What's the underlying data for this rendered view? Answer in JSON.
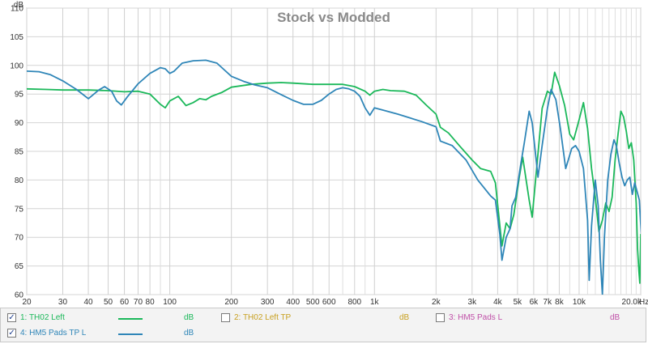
{
  "chart_data": {
    "type": "line",
    "title": "Stock vs Modded",
    "y_unit_label": "dB",
    "x_unit_label": "Hz",
    "x_scale": "log",
    "xlim": [
      20,
      20000
    ],
    "ylim": [
      60,
      110
    ],
    "grid": true,
    "x_ticks": [
      {
        "v": 20,
        "label": "20"
      },
      {
        "v": 30,
        "label": "30"
      },
      {
        "v": 40,
        "label": "40"
      },
      {
        "v": 50,
        "label": "50"
      },
      {
        "v": 60,
        "label": "60"
      },
      {
        "v": 70,
        "label": "70"
      },
      {
        "v": 80,
        "label": "80"
      },
      {
        "v": 100,
        "label": "100"
      },
      {
        "v": 200,
        "label": "200"
      },
      {
        "v": 300,
        "label": "300"
      },
      {
        "v": 400,
        "label": "400"
      },
      {
        "v": 500,
        "label": "500"
      },
      {
        "v": 600,
        "label": "600"
      },
      {
        "v": 800,
        "label": "800"
      },
      {
        "v": 1000,
        "label": "1k"
      },
      {
        "v": 2000,
        "label": "2k"
      },
      {
        "v": 3000,
        "label": "3k"
      },
      {
        "v": 4000,
        "label": "4k"
      },
      {
        "v": 5000,
        "label": "5k"
      },
      {
        "v": 6000,
        "label": "6k"
      },
      {
        "v": 7000,
        "label": "7k"
      },
      {
        "v": 8000,
        "label": "8k"
      },
      {
        "v": 10000,
        "label": "10k"
      },
      {
        "v": 20000,
        "label": "20.0k"
      }
    ],
    "x_minor_gridlines": [
      90,
      700,
      900,
      9000,
      11000,
      12000,
      13000,
      14000,
      15000,
      16000,
      17000,
      18000,
      19000
    ],
    "y_ticks": [
      60,
      65,
      70,
      75,
      80,
      85,
      90,
      95,
      100,
      105,
      110
    ],
    "series": [
      {
        "name": "1: TH02 Left",
        "color": "#1bb85a",
        "points": [
          [
            20,
            95.9
          ],
          [
            25,
            95.8
          ],
          [
            30,
            95.7
          ],
          [
            40,
            95.7
          ],
          [
            50,
            95.6
          ],
          [
            60,
            95.4
          ],
          [
            70,
            95.5
          ],
          [
            80,
            95.0
          ],
          [
            90,
            93.2
          ],
          [
            95,
            92.6
          ],
          [
            100,
            93.8
          ],
          [
            110,
            94.6
          ],
          [
            120,
            93.0
          ],
          [
            130,
            93.5
          ],
          [
            140,
            94.2
          ],
          [
            150,
            94.0
          ],
          [
            160,
            94.6
          ],
          [
            180,
            95.3
          ],
          [
            200,
            96.2
          ],
          [
            250,
            96.7
          ],
          [
            300,
            96.9
          ],
          [
            350,
            97.0
          ],
          [
            400,
            96.9
          ],
          [
            500,
            96.7
          ],
          [
            600,
            96.7
          ],
          [
            700,
            96.7
          ],
          [
            800,
            96.3
          ],
          [
            900,
            95.5
          ],
          [
            950,
            94.8
          ],
          [
            1000,
            95.5
          ],
          [
            1100,
            95.8
          ],
          [
            1200,
            95.6
          ],
          [
            1400,
            95.5
          ],
          [
            1600,
            94.8
          ],
          [
            1800,
            93.0
          ],
          [
            2000,
            91.5
          ],
          [
            2100,
            89.2
          ],
          [
            2300,
            88.2
          ],
          [
            2600,
            86.0
          ],
          [
            3000,
            83.5
          ],
          [
            3300,
            82.0
          ],
          [
            3700,
            81.5
          ],
          [
            3900,
            79.5
          ],
          [
            4100,
            72.0
          ],
          [
            4200,
            68.5
          ],
          [
            4400,
            72.5
          ],
          [
            4600,
            71.5
          ],
          [
            4800,
            74.0
          ],
          [
            5100,
            80.5
          ],
          [
            5300,
            84.0
          ],
          [
            5700,
            76.5
          ],
          [
            5900,
            73.5
          ],
          [
            6200,
            82.0
          ],
          [
            6600,
            92.5
          ],
          [
            7000,
            95.5
          ],
          [
            7300,
            95.0
          ],
          [
            7600,
            98.8
          ],
          [
            8000,
            96.5
          ],
          [
            8500,
            93.0
          ],
          [
            9000,
            88.0
          ],
          [
            9400,
            87.0
          ],
          [
            10000,
            90.5
          ],
          [
            10500,
            93.5
          ],
          [
            11000,
            89.0
          ],
          [
            11500,
            82.0
          ],
          [
            12000,
            77.0
          ],
          [
            12500,
            71.0
          ],
          [
            13000,
            73.0
          ],
          [
            13500,
            76.0
          ],
          [
            14000,
            74.5
          ],
          [
            14500,
            77.0
          ],
          [
            15000,
            83.5
          ],
          [
            15500,
            88.0
          ],
          [
            16000,
            92.0
          ],
          [
            16500,
            91.0
          ],
          [
            17000,
            88.5
          ],
          [
            17500,
            85.5
          ],
          [
            18000,
            86.5
          ],
          [
            18500,
            83.5
          ],
          [
            19000,
            76.0
          ],
          [
            19300,
            68.0
          ],
          [
            19600,
            64.0
          ],
          [
            19800,
            62.0
          ],
          [
            20000,
            70.5
          ],
          [
            20200,
            66.0
          ],
          [
            20500,
            78.0
          ]
        ]
      },
      {
        "name": "2: TH02 Left TP",
        "color": "#c8a020",
        "points": []
      },
      {
        "name": "3: HM5 Pads L",
        "color": "#c050a8",
        "points": []
      },
      {
        "name": "4: HM5 Pads TP L",
        "color": "#2f86b8",
        "points": [
          [
            20,
            99.0
          ],
          [
            23,
            98.9
          ],
          [
            26,
            98.4
          ],
          [
            30,
            97.3
          ],
          [
            35,
            95.8
          ],
          [
            40,
            94.2
          ],
          [
            45,
            95.7
          ],
          [
            48,
            96.3
          ],
          [
            52,
            95.5
          ],
          [
            55,
            93.8
          ],
          [
            58,
            93.1
          ],
          [
            62,
            94.5
          ],
          [
            70,
            96.8
          ],
          [
            80,
            98.6
          ],
          [
            90,
            99.6
          ],
          [
            95,
            99.4
          ],
          [
            100,
            98.6
          ],
          [
            105,
            99.0
          ],
          [
            115,
            100.4
          ],
          [
            130,
            100.8
          ],
          [
            150,
            100.9
          ],
          [
            170,
            100.4
          ],
          [
            185,
            99.2
          ],
          [
            200,
            98.1
          ],
          [
            230,
            97.2
          ],
          [
            260,
            96.6
          ],
          [
            300,
            96.1
          ],
          [
            350,
            94.9
          ],
          [
            400,
            93.9
          ],
          [
            450,
            93.2
          ],
          [
            500,
            93.2
          ],
          [
            550,
            93.9
          ],
          [
            600,
            95.0
          ],
          [
            650,
            95.8
          ],
          [
            700,
            96.1
          ],
          [
            750,
            95.9
          ],
          [
            800,
            95.5
          ],
          [
            850,
            94.6
          ],
          [
            900,
            92.6
          ],
          [
            950,
            91.3
          ],
          [
            1000,
            92.6
          ],
          [
            1100,
            92.2
          ],
          [
            1300,
            91.5
          ],
          [
            1500,
            90.8
          ],
          [
            1700,
            90.2
          ],
          [
            2000,
            89.3
          ],
          [
            2100,
            86.8
          ],
          [
            2400,
            86.0
          ],
          [
            2800,
            83.5
          ],
          [
            3200,
            80.0
          ],
          [
            3700,
            77.2
          ],
          [
            3900,
            76.5
          ],
          [
            4100,
            70.5
          ],
          [
            4200,
            66.0
          ],
          [
            4400,
            70.0
          ],
          [
            4600,
            71.5
          ],
          [
            4700,
            75.5
          ],
          [
            4900,
            77.0
          ],
          [
            5200,
            83.0
          ],
          [
            5400,
            86.5
          ],
          [
            5700,
            92.0
          ],
          [
            5900,
            90.0
          ],
          [
            6300,
            80.5
          ],
          [
            6600,
            86.0
          ],
          [
            7000,
            92.5
          ],
          [
            7300,
            95.8
          ],
          [
            7700,
            94.0
          ],
          [
            8100,
            89.0
          ],
          [
            8600,
            82.0
          ],
          [
            9200,
            85.5
          ],
          [
            9600,
            86.0
          ],
          [
            10000,
            85.0
          ],
          [
            10500,
            82.0
          ],
          [
            11000,
            73.0
          ],
          [
            11200,
            62.5
          ],
          [
            11500,
            72.0
          ],
          [
            12000,
            80.0
          ],
          [
            12400,
            75.5
          ],
          [
            12700,
            66.0
          ],
          [
            13000,
            60.0
          ],
          [
            13300,
            70.0
          ],
          [
            13800,
            80.0
          ],
          [
            14300,
            84.5
          ],
          [
            14800,
            87.0
          ],
          [
            15200,
            86.0
          ],
          [
            15700,
            83.0
          ],
          [
            16200,
            80.5
          ],
          [
            16700,
            79.0
          ],
          [
            17200,
            80.0
          ],
          [
            17700,
            80.5
          ],
          [
            18200,
            77.5
          ],
          [
            18700,
            79.5
          ],
          [
            19200,
            78.0
          ],
          [
            19700,
            76.5
          ],
          [
            20100,
            71.0
          ],
          [
            20400,
            69.0
          ],
          [
            20700,
            65.5
          ],
          [
            21000,
            72.0
          ]
        ]
      }
    ]
  },
  "legend": [
    {
      "label": "1: TH02 Left",
      "unit": "dB",
      "checked": true,
      "text_color": "#1bb85a",
      "show_swatch": true
    },
    {
      "label": "2: TH02 Left TP",
      "unit": "dB",
      "checked": false,
      "text_color": "#c8a020",
      "show_swatch": false
    },
    {
      "label": "3: HM5 Pads L",
      "unit": "dB",
      "checked": false,
      "text_color": "#c050a8",
      "show_swatch": false
    },
    {
      "label": "4: HM5 Pads TP L",
      "unit": "dB",
      "checked": true,
      "text_color": "#2f86b8",
      "show_swatch": true
    }
  ]
}
